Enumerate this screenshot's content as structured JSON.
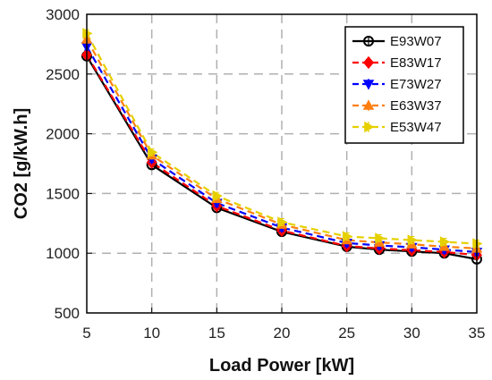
{
  "chart_data": {
    "type": "line",
    "xlabel": "Load Power [kW]",
    "ylabel": "CO2 [g/kW.h]",
    "xlim": [
      5,
      35
    ],
    "ylim": [
      500,
      3000
    ],
    "xticks": [
      "5",
      "10",
      "15",
      "20",
      "25",
      "30",
      "35"
    ],
    "yticks": [
      "500",
      "1000",
      "1500",
      "2000",
      "2500",
      "3000"
    ],
    "grid": true,
    "legend_position": "top-right",
    "x": [
      5,
      10,
      15,
      20,
      25,
      27.5,
      30,
      32.5,
      35
    ],
    "series": [
      {
        "name": "E93W07",
        "color": "#000000",
        "marker": "circle",
        "values": [
          2650,
          1740,
          1380,
          1180,
          1055,
          1030,
          1015,
          1000,
          950
        ]
      },
      {
        "name": "E83W17",
        "color": "#ff0000",
        "marker": "diamond",
        "values": [
          2660,
          1760,
          1395,
          1190,
          1060,
          1040,
          1025,
          1010,
          985
        ]
      },
      {
        "name": "E73W27",
        "color": "#0000ff",
        "marker": "triangle-down",
        "values": [
          2730,
          1790,
          1420,
          1215,
          1085,
          1065,
          1050,
          1030,
          1010
        ]
      },
      {
        "name": "E63W37",
        "color": "#ff7f0e",
        "marker": "triangle-up",
        "values": [
          2790,
          1820,
          1455,
          1240,
          1110,
          1090,
          1075,
          1055,
          1040
        ]
      },
      {
        "name": "E53W47",
        "color": "#e6d000",
        "marker": "triangle-right",
        "values": [
          2840,
          1845,
          1480,
          1260,
          1140,
          1125,
          1110,
          1095,
          1080
        ]
      }
    ]
  }
}
